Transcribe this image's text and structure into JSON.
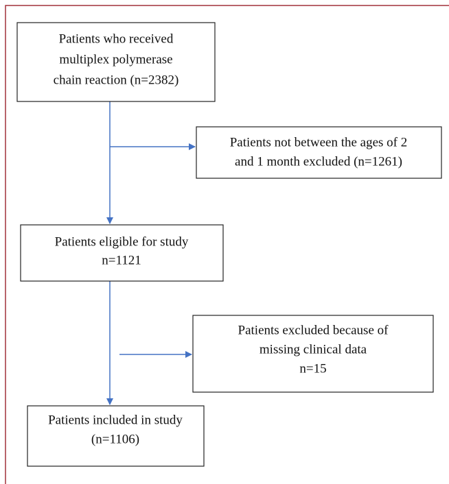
{
  "nodes": [
    {
      "lines": [
        "Patients who received",
        "multiplex polymerase",
        "chain reaction (n=2382)"
      ]
    },
    {
      "lines": [
        "Patients not between the ages of 2",
        "and 1 month excluded (n=1261)"
      ]
    },
    {
      "lines": [
        "Patients eligible for study",
        "n=1121"
      ]
    },
    {
      "lines": [
        "Patients excluded because of",
        "missing clinical data",
        "n=15"
      ]
    },
    {
      "lines": [
        "Patients included in study",
        "(n=1106)"
      ]
    }
  ]
}
